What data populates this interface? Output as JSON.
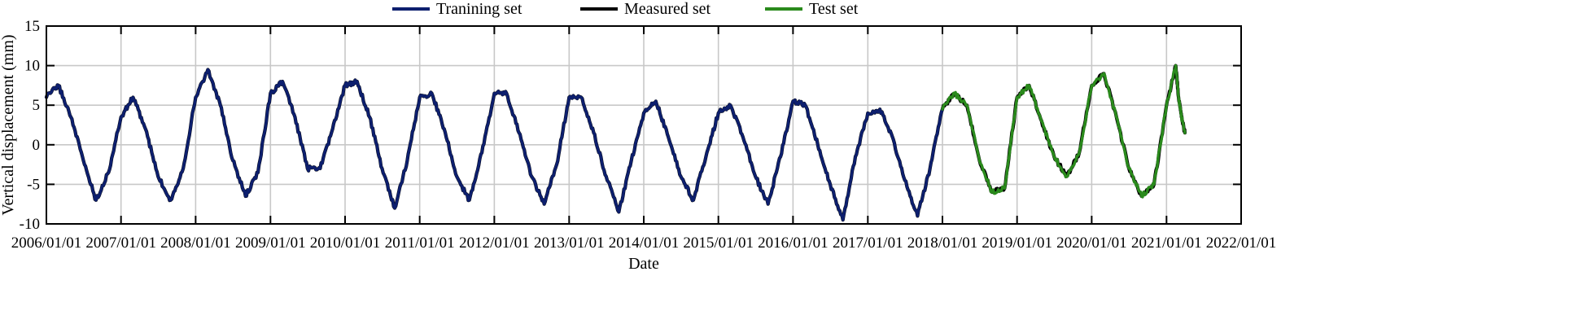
{
  "chart_data": {
    "type": "line",
    "title": "",
    "xlabel": "Date",
    "ylabel": "Vertical displacement (mm)",
    "xlim": [
      "2006-01-01",
      "2022-01-01"
    ],
    "ylim": [
      -10,
      15
    ],
    "grid": true,
    "legend_position": "top",
    "x_ticks": [
      "2006/01/01",
      "2007/01/01",
      "2008/01/01",
      "2009/01/01",
      "2010/01/01",
      "2011/01/01",
      "2012/01/01",
      "2013/01/01",
      "2014/01/01",
      "2015/01/01",
      "2016/01/01",
      "2017/01/01",
      "2018/01/01",
      "2019/01/01",
      "2020/01/01",
      "2021/01/01",
      "2022/01/01"
    ],
    "y_ticks": [
      "15",
      "10",
      "5",
      "0",
      "-5",
      "-10"
    ],
    "series": [
      {
        "name": "Tranining set",
        "color": "#0d1f6e",
        "x": [
          "2006-01-01",
          "2006-03-01",
          "2006-05-01",
          "2006-07-01",
          "2006-09-01",
          "2006-11-01",
          "2007-01-01",
          "2007-03-01",
          "2007-05-01",
          "2007-07-01",
          "2007-09-01",
          "2007-11-01",
          "2008-01-01",
          "2008-03-01",
          "2008-05-01",
          "2008-07-01",
          "2008-09-01",
          "2008-11-01",
          "2009-01-01",
          "2009-03-01",
          "2009-05-01",
          "2009-07-01",
          "2009-09-01",
          "2009-11-01",
          "2010-01-01",
          "2010-03-01",
          "2010-05-01",
          "2010-07-01",
          "2010-09-01",
          "2010-11-01",
          "2011-01-01",
          "2011-03-01",
          "2011-05-01",
          "2011-07-01",
          "2011-09-01",
          "2011-11-01",
          "2012-01-01",
          "2012-03-01",
          "2012-05-01",
          "2012-07-01",
          "2012-09-01",
          "2012-11-01",
          "2013-01-01",
          "2013-03-01",
          "2013-05-01",
          "2013-07-01",
          "2013-09-01",
          "2013-11-01",
          "2014-01-01",
          "2014-03-01",
          "2014-05-01",
          "2014-07-01",
          "2014-09-01",
          "2014-11-01",
          "2015-01-01",
          "2015-03-01",
          "2015-05-01",
          "2015-07-01",
          "2015-09-01",
          "2015-11-01",
          "2016-01-01",
          "2016-03-01",
          "2016-05-01",
          "2016-07-01",
          "2016-09-01",
          "2016-11-01",
          "2017-01-01",
          "2017-03-01",
          "2017-05-01",
          "2017-07-01",
          "2017-09-01",
          "2017-11-01",
          "2018-01-01"
        ],
        "y": [
          6.0,
          7.5,
          3.5,
          -2.0,
          -7.0,
          -3.5,
          3.5,
          6.0,
          2.0,
          -4.0,
          -7.0,
          -3.0,
          6.0,
          9.5,
          5.0,
          -2.0,
          -6.5,
          -3.5,
          6.5,
          8.0,
          3.5,
          -3.0,
          -3.0,
          2.0,
          7.5,
          8.0,
          3.5,
          -3.0,
          -8.0,
          -2.0,
          6.0,
          6.5,
          2.0,
          -4.0,
          -7.0,
          -1.0,
          6.5,
          6.5,
          1.5,
          -4.0,
          -7.5,
          -2.5,
          6.0,
          6.0,
          1.5,
          -4.0,
          -8.5,
          -2.0,
          4.0,
          5.5,
          1.0,
          -4.0,
          -7.0,
          -1.5,
          4.0,
          5.0,
          1.0,
          -4.0,
          -7.5,
          -1.5,
          5.5,
          5.0,
          0.0,
          -5.0,
          -9.5,
          -1.5,
          4.0,
          4.5,
          1.0,
          -4.5,
          -9.0,
          -3.0,
          4.5
        ]
      },
      {
        "name": "Measured set",
        "color": "#000000",
        "x": [
          "2006-01-01",
          "2006-03-01",
          "2006-05-01",
          "2006-07-01",
          "2006-09-01",
          "2006-11-01",
          "2007-01-01",
          "2007-03-01",
          "2007-05-01",
          "2007-07-01",
          "2007-09-01",
          "2007-11-01",
          "2008-01-01",
          "2008-03-01",
          "2008-05-01",
          "2008-07-01",
          "2008-09-01",
          "2008-11-01",
          "2009-01-01",
          "2009-03-01",
          "2009-05-01",
          "2009-07-01",
          "2009-09-01",
          "2009-11-01",
          "2010-01-01",
          "2010-03-01",
          "2010-05-01",
          "2010-07-01",
          "2010-09-01",
          "2010-11-01",
          "2011-01-01",
          "2011-03-01",
          "2011-05-01",
          "2011-07-01",
          "2011-09-01",
          "2011-11-01",
          "2012-01-01",
          "2012-03-01",
          "2012-05-01",
          "2012-07-01",
          "2012-09-01",
          "2012-11-01",
          "2013-01-01",
          "2013-03-01",
          "2013-05-01",
          "2013-07-01",
          "2013-09-01",
          "2013-11-01",
          "2014-01-01",
          "2014-03-01",
          "2014-05-01",
          "2014-07-01",
          "2014-09-01",
          "2014-11-01",
          "2015-01-01",
          "2015-03-01",
          "2015-05-01",
          "2015-07-01",
          "2015-09-01",
          "2015-11-01",
          "2016-01-01",
          "2016-03-01",
          "2016-05-01",
          "2016-07-01",
          "2016-09-01",
          "2016-11-01",
          "2017-01-01",
          "2017-03-01",
          "2017-05-01",
          "2017-07-01",
          "2017-09-01",
          "2017-11-01",
          "2018-01-01",
          "2018-03-01",
          "2018-05-01",
          "2018-07-01",
          "2018-09-01",
          "2018-11-01",
          "2019-01-01",
          "2019-03-01",
          "2019-05-01",
          "2019-07-01",
          "2019-09-01",
          "2019-11-01",
          "2020-01-01",
          "2020-03-01",
          "2020-05-01",
          "2020-07-01",
          "2020-09-01",
          "2020-11-01",
          "2021-01-01",
          "2021-02-15",
          "2021-03-01",
          "2021-03-15",
          "2021-04-01"
        ],
        "y": [
          6.0,
          7.5,
          3.5,
          -2.0,
          -7.0,
          -3.5,
          3.5,
          6.0,
          2.0,
          -4.0,
          -7.0,
          -3.0,
          6.0,
          9.5,
          5.0,
          -2.0,
          -6.5,
          -3.5,
          6.5,
          8.0,
          3.5,
          -3.0,
          -3.0,
          2.0,
          7.5,
          8.0,
          3.5,
          -3.0,
          -8.0,
          -2.0,
          6.0,
          6.5,
          2.0,
          -4.0,
          -7.0,
          -1.0,
          6.5,
          6.5,
          1.5,
          -4.0,
          -7.5,
          -2.5,
          6.0,
          6.0,
          1.5,
          -4.0,
          -8.5,
          -2.0,
          4.0,
          5.5,
          1.0,
          -4.0,
          -7.0,
          -1.5,
          4.0,
          5.0,
          1.0,
          -4.0,
          -7.5,
          -1.5,
          5.5,
          5.0,
          0.0,
          -5.0,
          -9.5,
          -1.5,
          4.0,
          4.5,
          1.0,
          -4.5,
          -9.0,
          -3.0,
          4.5,
          6.5,
          5.0,
          -2.0,
          -6.0,
          -5.5,
          6.0,
          7.5,
          3.0,
          -1.5,
          -4.0,
          -1.0,
          7.5,
          9.0,
          3.5,
          -3.0,
          -6.5,
          -5.0,
          5.0,
          10.0,
          6.0,
          3.5,
          1.5
        ]
      },
      {
        "name": "Test set",
        "color": "#2a8a1c",
        "x": [
          "2018-01-01",
          "2018-03-01",
          "2018-05-01",
          "2018-07-01",
          "2018-09-01",
          "2018-11-01",
          "2019-01-01",
          "2019-03-01",
          "2019-05-01",
          "2019-07-01",
          "2019-09-01",
          "2019-11-01",
          "2020-01-01",
          "2020-03-01",
          "2020-05-01",
          "2020-07-01",
          "2020-09-01",
          "2020-11-01",
          "2021-01-01",
          "2021-02-15",
          "2021-03-01",
          "2021-03-15",
          "2021-04-01"
        ],
        "y": [
          4.5,
          6.5,
          5.0,
          -2.0,
          -6.0,
          -5.5,
          6.0,
          7.5,
          3.0,
          -1.5,
          -4.0,
          -1.0,
          7.5,
          9.0,
          3.5,
          -3.0,
          -6.5,
          -5.0,
          5.0,
          10.0,
          6.0,
          3.5,
          1.5
        ]
      }
    ]
  }
}
